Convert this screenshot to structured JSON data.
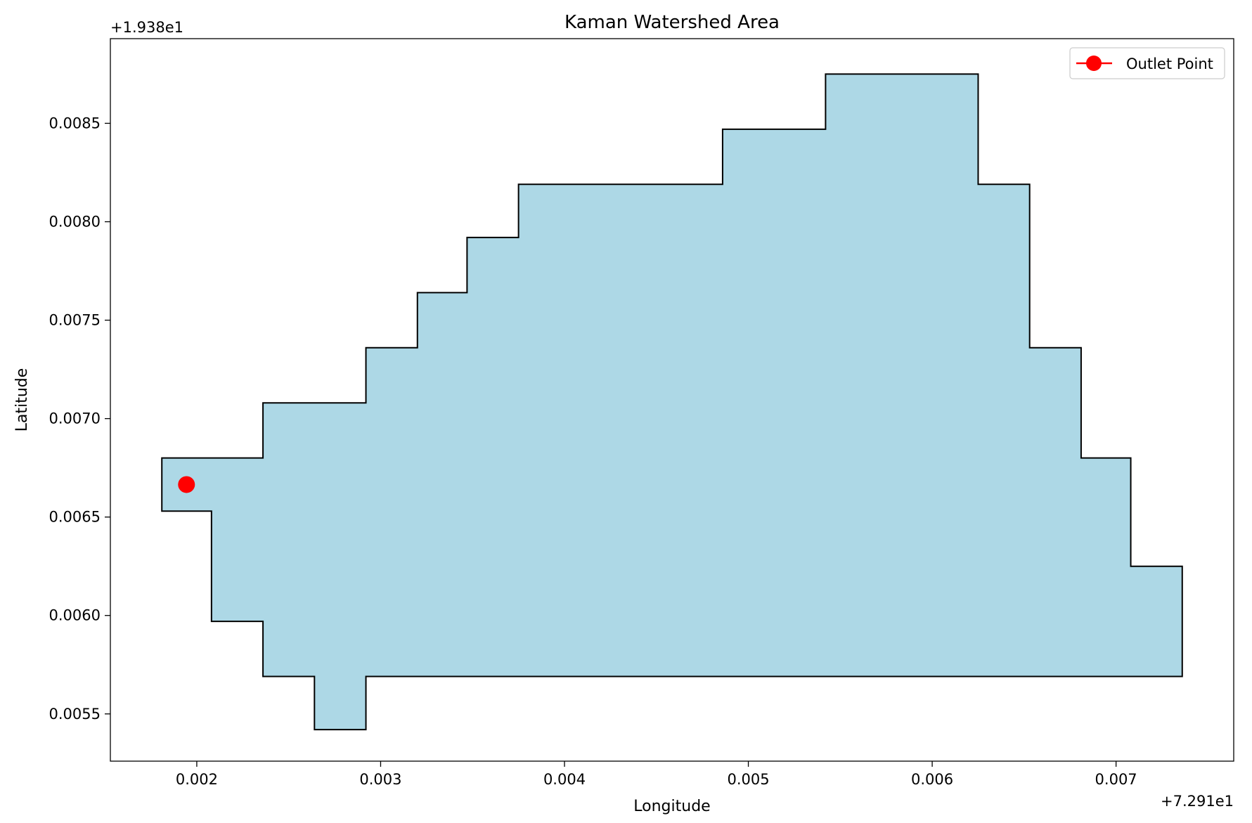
{
  "chart_data": {
    "type": "area",
    "title": "Kaman Watershed Area",
    "xlabel": "Longitude",
    "ylabel": "Latitude",
    "x_offset_label": "+7.291e1",
    "y_offset_label": "+1.938e1",
    "x_offset": 72.91,
    "y_offset": 19.38,
    "xlim": [
      0.00153,
      0.00764
    ],
    "ylim": [
      0.00526,
      0.00893
    ],
    "x_ticks": [
      0.002,
      0.003,
      0.004,
      0.005,
      0.006,
      0.007
    ],
    "x_tick_labels": [
      "0.002",
      "0.003",
      "0.004",
      "0.005",
      "0.006",
      "0.007"
    ],
    "y_ticks": [
      0.0055,
      0.006,
      0.0065,
      0.007,
      0.0075,
      0.008,
      0.0085
    ],
    "y_tick_labels": [
      "0.0055",
      "0.0060",
      "0.0065",
      "0.0070",
      "0.0075",
      "0.0080",
      "0.0085"
    ],
    "grid": false,
    "legend": {
      "placement": "top-right",
      "entries": [
        "Outlet Point"
      ]
    },
    "polygon": {
      "fill_color": "#add8e6",
      "edge_color": "#000000",
      "points": [
        [
          0.00181,
          0.0068
        ],
        [
          0.00236,
          0.0068
        ],
        [
          0.00236,
          0.00708
        ],
        [
          0.00292,
          0.00708
        ],
        [
          0.00292,
          0.00736
        ],
        [
          0.0032,
          0.00736
        ],
        [
          0.0032,
          0.00764
        ],
        [
          0.00347,
          0.00764
        ],
        [
          0.00347,
          0.00792
        ],
        [
          0.00375,
          0.00792
        ],
        [
          0.00375,
          0.00819
        ],
        [
          0.00486,
          0.00819
        ],
        [
          0.00486,
          0.00847
        ],
        [
          0.00542,
          0.00847
        ],
        [
          0.00542,
          0.00875
        ],
        [
          0.00625,
          0.00875
        ],
        [
          0.00625,
          0.00819
        ],
        [
          0.00653,
          0.00819
        ],
        [
          0.00653,
          0.00736
        ],
        [
          0.00681,
          0.00736
        ],
        [
          0.00681,
          0.0068
        ],
        [
          0.00708,
          0.0068
        ],
        [
          0.00708,
          0.00625
        ],
        [
          0.00736,
          0.00625
        ],
        [
          0.00736,
          0.00569
        ],
        [
          0.00292,
          0.00569
        ],
        [
          0.00292,
          0.00542
        ],
        [
          0.00264,
          0.00542
        ],
        [
          0.00264,
          0.00569
        ],
        [
          0.00236,
          0.00569
        ],
        [
          0.00236,
          0.00597
        ],
        [
          0.00208,
          0.00597
        ],
        [
          0.00208,
          0.00653
        ],
        [
          0.00181,
          0.00653
        ]
      ]
    },
    "outlet_point": {
      "name": "Outlet Point",
      "x": 0.001944,
      "y": 0.006665,
      "color": "#ff0000"
    }
  }
}
